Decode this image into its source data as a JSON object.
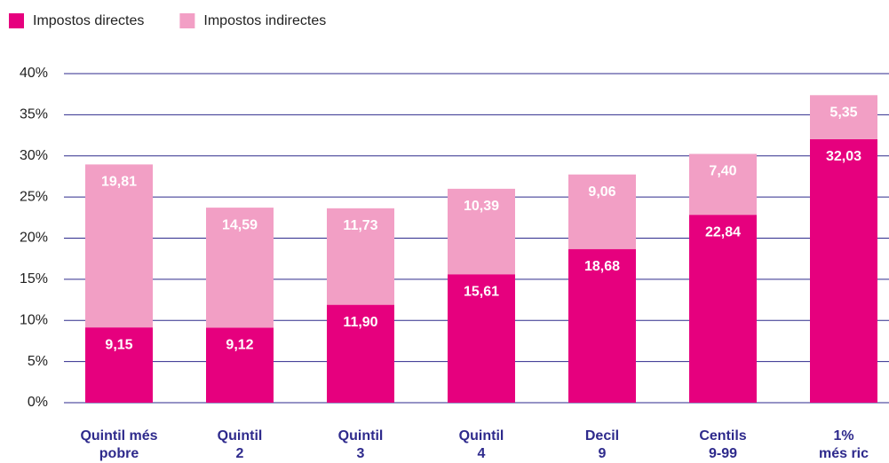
{
  "chart_data": {
    "type": "stacked_bar",
    "categories": [
      [
        "Quintil més",
        "pobre"
      ],
      [
        "Quintil",
        "2"
      ],
      [
        "Quintil",
        "3"
      ],
      [
        "Quintil",
        "4"
      ],
      [
        "Decil",
        "9"
      ],
      [
        "Centils",
        "9-99"
      ],
      [
        "1%",
        "més ric"
      ]
    ],
    "series": [
      {
        "name": "Impostos directes",
        "color": "#e6007e",
        "values": [
          9.15,
          9.12,
          11.9,
          15.61,
          18.68,
          22.84,
          32.03
        ],
        "value_labels": [
          "9,15",
          "9,12",
          "11,90",
          "15,61",
          "18,68",
          "22,84",
          "32,03"
        ]
      },
      {
        "name": "Impostos indirectes",
        "color": "#f29fc5",
        "values": [
          19.81,
          14.59,
          11.73,
          10.39,
          9.06,
          7.4,
          5.35
        ],
        "value_labels": [
          "19,81",
          "14,59",
          "11,73",
          "10,39",
          "9,06",
          "7,40",
          "5,35"
        ]
      }
    ],
    "ylim": [
      0,
      40
    ],
    "yticks": [
      {
        "value": 0,
        "label": "0%"
      },
      {
        "value": 5,
        "label": "5%"
      },
      {
        "value": 10,
        "label": "10%"
      },
      {
        "value": 15,
        "label": "15%"
      },
      {
        "value": 20,
        "label": "20%"
      },
      {
        "value": 25,
        "label": "25%"
      },
      {
        "value": 30,
        "label": "30%"
      },
      {
        "value": 35,
        "label": "35%"
      },
      {
        "value": 40,
        "label": "40%"
      }
    ],
    "grid": true,
    "legend": "top-left"
  }
}
